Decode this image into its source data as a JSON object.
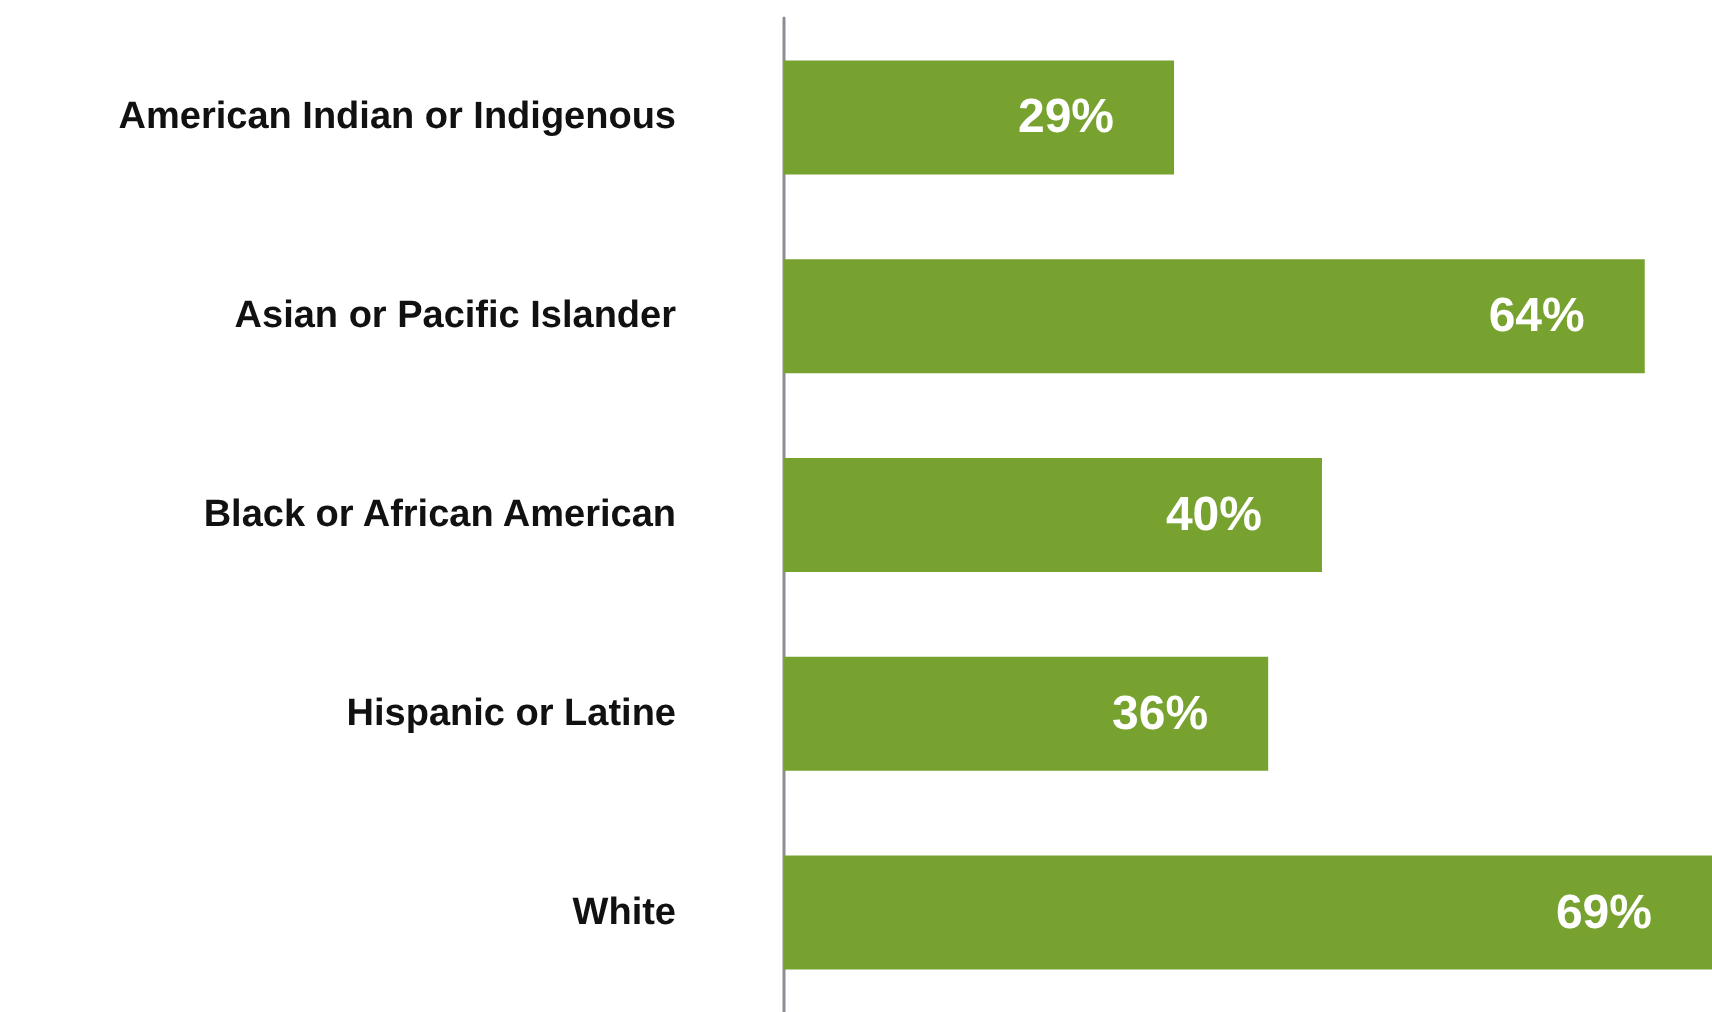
{
  "chart_data": {
    "type": "bar",
    "orientation": "horizontal",
    "categories": [
      "American Indian or Indigenous",
      "Asian or Pacific Islander",
      "Black or African American",
      "Hispanic or Latine",
      "White"
    ],
    "values": [
      29,
      64,
      40,
      36,
      69
    ],
    "value_labels": [
      "29%",
      "64%",
      "40%",
      "36%",
      "69%"
    ],
    "color": "#77a22f"
  }
}
